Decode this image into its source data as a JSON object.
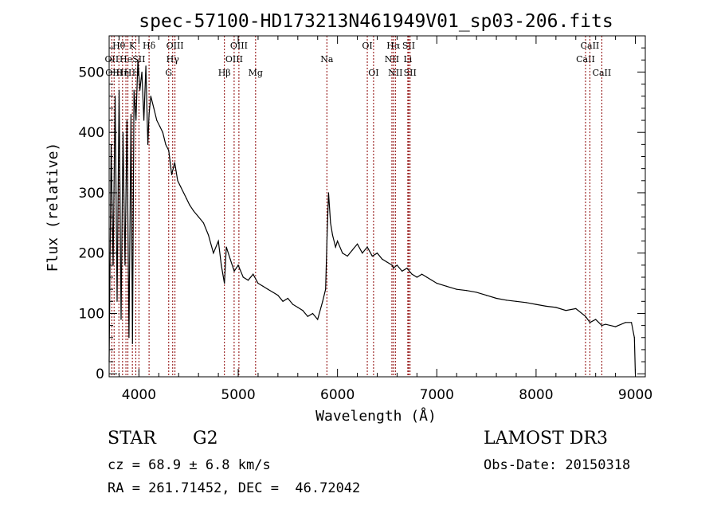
{
  "chart_data": {
    "type": "line",
    "title": "spec-57100-HD173213N461949V01_sp03-206.fits",
    "xlabel": "Wavelength (Å)",
    "ylabel": "Flux (relative)",
    "xlim": [
      3700,
      9100
    ],
    "ylim": [
      -5,
      560
    ],
    "xticks": [
      4000,
      5000,
      6000,
      7000,
      8000,
      9000
    ],
    "yticks": [
      0,
      100,
      200,
      300,
      400,
      500
    ],
    "grid": false,
    "line_color": "#000000",
    "marker_color": "#8b0000",
    "series": [
      {
        "x": [
          3700,
          3720,
          3740,
          3760,
          3780,
          3800,
          3820,
          3840,
          3860,
          3880,
          3900,
          3920,
          3935,
          3950,
          3970,
          3990,
          4010,
          4030,
          4050,
          4070,
          4090,
          4102,
          4120,
          4150,
          4180,
          4210,
          4240,
          4270,
          4300,
          4330,
          4360,
          4390,
          4420,
          4450,
          4480,
          4510,
          4550,
          4600,
          4650,
          4700,
          4750,
          4800,
          4830,
          4861,
          4880,
          4920,
          4960,
          5000,
          5050,
          5100,
          5150,
          5200,
          5250,
          5300,
          5350,
          5400,
          5450,
          5500,
          5550,
          5600,
          5650,
          5700,
          5750,
          5800,
          5850,
          5880,
          5895,
          5910,
          5930,
          5950,
          5980,
          6000,
          6050,
          6100,
          6150,
          6200,
          6250,
          6300,
          6350,
          6400,
          6450,
          6500,
          6550,
          6563,
          6600,
          6650,
          6700,
          6750,
          6800,
          6850,
          6900,
          6950,
          7000,
          7100,
          7200,
          7300,
          7400,
          7500,
          7600,
          7700,
          7800,
          7900,
          8000,
          8100,
          8200,
          8300,
          8400,
          8498,
          8542,
          8600,
          8662,
          8700,
          8800,
          8900,
          8960,
          8990,
          9000
        ],
        "y": [
          20,
          380,
          180,
          460,
          120,
          470,
          90,
          400,
          180,
          420,
          60,
          430,
          50,
          470,
          420,
          520,
          470,
          500,
          420,
          510,
          380,
          430,
          460,
          440,
          420,
          410,
          400,
          380,
          370,
          330,
          350,
          320,
          310,
          300,
          290,
          280,
          270,
          260,
          250,
          230,
          200,
          220,
          180,
          150,
          210,
          190,
          170,
          180,
          160,
          155,
          165,
          150,
          145,
          140,
          135,
          130,
          120,
          125,
          115,
          110,
          105,
          95,
          100,
          90,
          120,
          140,
          230,
          300,
          250,
          230,
          210,
          220,
          200,
          195,
          205,
          215,
          200,
          210,
          195,
          200,
          190,
          185,
          180,
          175,
          180,
          170,
          175,
          165,
          160,
          165,
          160,
          155,
          150,
          145,
          140,
          138,
          135,
          130,
          125,
          122,
          120,
          118,
          115,
          112,
          110,
          105,
          108,
          95,
          85,
          90,
          80,
          82,
          78,
          85,
          85,
          60,
          0
        ]
      }
    ],
    "line_markers": [
      {
        "x": 3727,
        "label": "OII",
        "row": 2
      },
      {
        "x": 3750,
        "label": "OIII",
        "row": 3
      },
      {
        "x": 3798,
        "label": "Hθ",
        "row": 1
      },
      {
        "x": 3835,
        "label": "Hη",
        "row": 3
      },
      {
        "x": 3869,
        "label": "He",
        "row": 2
      },
      {
        "x": 3889,
        "label": "H",
        "row": 3
      },
      {
        "x": 3934,
        "label": "K",
        "row": 1
      },
      {
        "x": 3969,
        "label": "H",
        "row": 3
      },
      {
        "x": 4000,
        "label": "SII",
        "row": 2
      },
      {
        "x": 4102,
        "label": "Hδ",
        "row": 1
      },
      {
        "x": 4300,
        "label": "G",
        "row": 3
      },
      {
        "x": 4340,
        "label": "Hγ",
        "row": 2
      },
      {
        "x": 4363,
        "label": "OIII",
        "row": 1
      },
      {
        "x": 4861,
        "label": "Hβ",
        "row": 3
      },
      {
        "x": 4959,
        "label": "OIII",
        "row": 2
      },
      {
        "x": 5007,
        "label": "OIII",
        "row": 1
      },
      {
        "x": 5175,
        "label": "Mg",
        "row": 3
      },
      {
        "x": 5893,
        "label": "Na",
        "row": 2
      },
      {
        "x": 6300,
        "label": "OI",
        "row": 1
      },
      {
        "x": 6363,
        "label": "OI",
        "row": 3
      },
      {
        "x": 6548,
        "label": "NII",
        "row": 2
      },
      {
        "x": 6563,
        "label": "Hα",
        "row": 1
      },
      {
        "x": 6583,
        "label": "NII",
        "row": 3
      },
      {
        "x": 6708,
        "label": "Li",
        "row": 2
      },
      {
        "x": 6717,
        "label": "SII",
        "row": 1
      },
      {
        "x": 6731,
        "label": "SII",
        "row": 3
      },
      {
        "x": 8498,
        "label": "CaII",
        "row": 2
      },
      {
        "x": 8542,
        "label": "CaII",
        "row": 1
      },
      {
        "x": 8662,
        "label": "CaII",
        "row": 3
      }
    ]
  },
  "info": {
    "object_class": "STAR",
    "subclass": "G2",
    "survey": "LAMOST DR3",
    "redshift": "cz = 68.9 ± 6.8 km/s",
    "obs_date": "Obs-Date: 20150318",
    "coords": "RA = 261.71452, DEC =  46.72042"
  }
}
